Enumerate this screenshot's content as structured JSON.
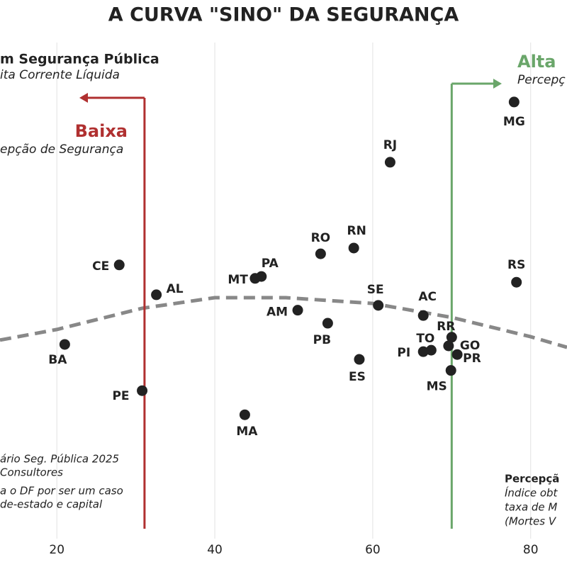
{
  "chart_data": {
    "type": "scatter",
    "title": "A CURVA \"SINO\" DA SEGURANÇA",
    "xlim": [
      12.8,
      84.6
    ],
    "xticks": [
      20,
      40,
      60,
      80
    ],
    "ylim": [
      0,
      100
    ],
    "grid": true,
    "color": "#222222",
    "points": {
      "labels": [
        "MG",
        "RJ",
        "RO",
        "RN",
        "CE",
        "PA",
        "MT",
        "AL",
        "SE",
        "AC",
        "AM",
        "RS",
        "PB",
        "RR",
        "GO",
        "TO",
        "PI",
        "PR",
        "ES",
        "MS",
        "BA",
        "PE",
        "MA"
      ],
      "x": [
        77.9,
        62.2,
        53.4,
        57.6,
        27.9,
        45.9,
        45.1,
        32.6,
        60.7,
        66.4,
        50.5,
        78.2,
        54.3,
        70.0,
        69.6,
        67.4,
        66.4,
        70.7,
        58.3,
        69.9,
        21.0,
        30.8,
        43.8
      ],
      "y": [
        90.6,
        78.1,
        59.1,
        60.3,
        56.8,
        54.4,
        54.0,
        50.6,
        48.4,
        46.3,
        47.4,
        53.2,
        44.7,
        41.8,
        40.0,
        39.1,
        38.8,
        38.2,
        37.2,
        34.9,
        40.3,
        30.7,
        25.7
      ]
    },
    "curve": {
      "color": "#888888",
      "x": [
        12.8,
        20,
        30.8,
        40,
        49,
        60,
        70,
        80,
        84.6
      ],
      "y": [
        41.2,
        43.4,
        47.8,
        50.0,
        50.0,
        48.8,
        45.9,
        41.9,
        39.7
      ]
    },
    "thresholds": [
      {
        "x": 31.1,
        "label": "Baixa",
        "color": "#b03030"
      },
      {
        "x": 70.0,
        "label": "Alta",
        "color": "#6aa66a"
      }
    ],
    "annotations": {
      "left_title": "m Segurança Pública",
      "left_subtitle": "ita Corrente Líquida",
      "low_subtitle": "epção de Segurança",
      "high_subtitle": "Percepç",
      "source": [
        "ário Seg. Pública 2025",
        "Consultores"
      ],
      "note": [
        "a o DF por ser um caso",
        "de-estado e capital"
      ],
      "x_title": "Percepçã",
      "x_desc": [
        "Índice obt",
        "taxa de M",
        "(Mortes V"
      ]
    }
  }
}
